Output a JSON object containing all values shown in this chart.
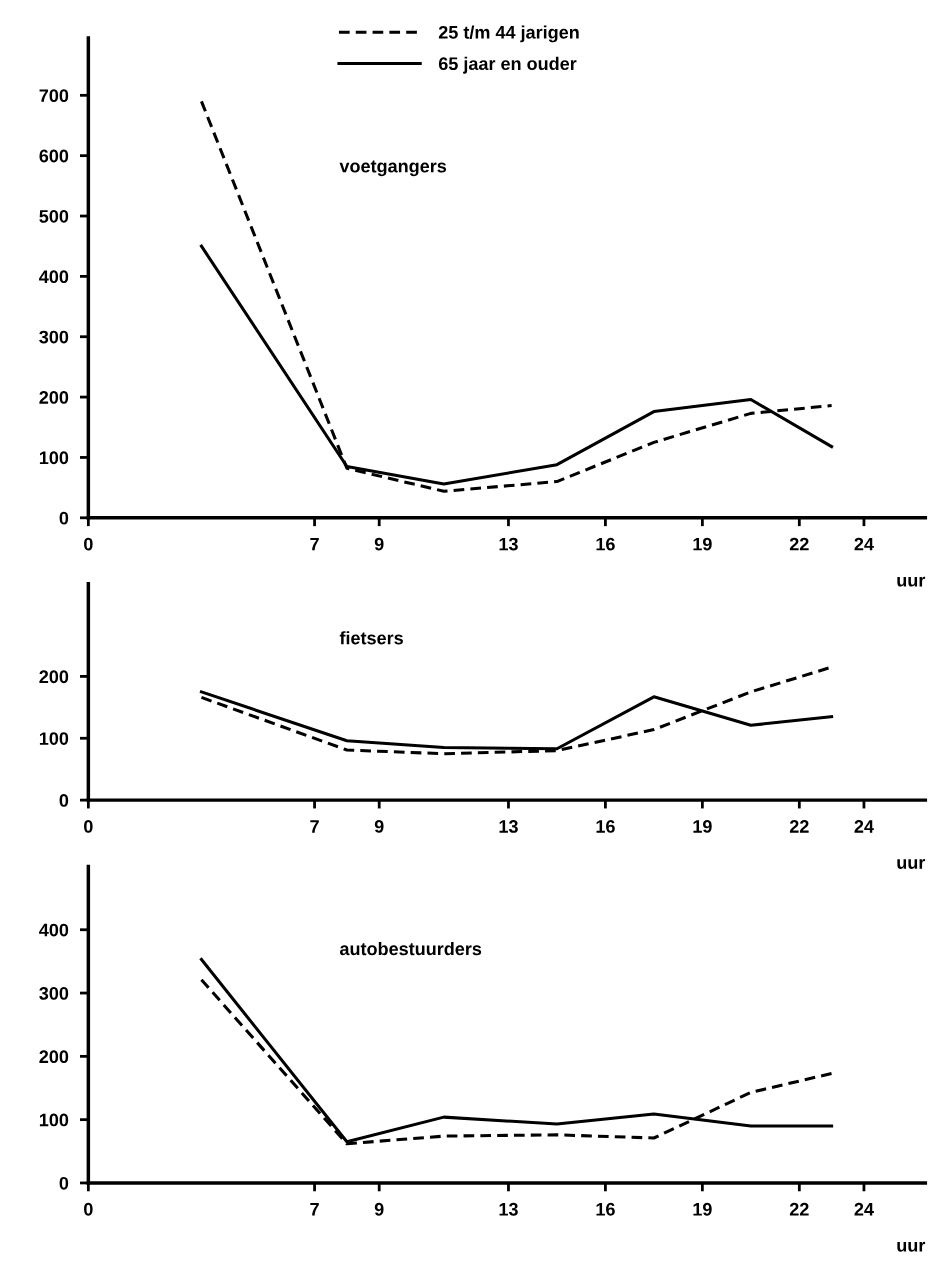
{
  "chart_data": [
    {
      "type": "line",
      "xlabel": "uur",
      "annotations": [
        "voetgangers"
      ],
      "legend": "top",
      "grid": false,
      "x": [
        3.5,
        8,
        11,
        14.5,
        17.5,
        20.5,
        23
      ],
      "xlim": [
        0,
        25.9
      ],
      "xticks": [
        0,
        7,
        9,
        13,
        16,
        19,
        22,
        24
      ],
      "ylim": [
        0,
        795
      ],
      "yticks": [
        0,
        100,
        200,
        300,
        400,
        500,
        600,
        700
      ],
      "series": [
        {
          "name": "25 t/m 44 jarigen",
          "color": "#000000",
          "line_style": "dashed",
          "values": [
            690,
            82,
            44,
            60,
            125,
            173,
            186
          ]
        },
        {
          "name": "65 jaar en ouder",
          "color": "#000000",
          "line_style": "solid",
          "values": [
            450,
            85,
            56,
            88,
            176,
            196,
            118
          ]
        }
      ]
    },
    {
      "type": "line",
      "xlabel": "uur",
      "annotations": [
        "fietsers"
      ],
      "grid": false,
      "x": [
        3.5,
        8,
        11,
        14.5,
        17.5,
        20.5,
        23
      ],
      "xlim": [
        0,
        25.9
      ],
      "xticks": [
        0,
        7,
        9,
        13,
        16,
        19,
        22,
        24
      ],
      "ylim": [
        0,
        350
      ],
      "yticks": [
        0,
        100,
        200
      ],
      "series": [
        {
          "color": "#000000",
          "line_style": "dashed",
          "values": [
            166,
            81,
            75,
            80,
            114,
            175,
            215
          ]
        },
        {
          "color": "#000000",
          "line_style": "solid",
          "values": [
            175,
            96,
            85,
            83,
            167,
            121,
            135
          ]
        }
      ]
    },
    {
      "type": "line",
      "xlabel": "uur",
      "annotations": [
        "autobestuurders"
      ],
      "grid": false,
      "x": [
        3.5,
        8,
        11,
        14.5,
        17.5,
        20.5,
        23
      ],
      "xlim": [
        0,
        25.9
      ],
      "xticks": [
        0,
        7,
        9,
        13,
        16,
        19,
        22,
        24
      ],
      "ylim": [
        0,
        500
      ],
      "yticks": [
        0,
        100,
        200,
        300,
        400
      ],
      "series": [
        {
          "color": "#000000",
          "line_style": "dashed",
          "values": [
            321,
            62,
            74,
            76,
            71,
            143,
            173
          ]
        },
        {
          "color": "#000000",
          "line_style": "solid",
          "values": [
            353,
            65,
            104,
            93,
            109,
            90,
            90
          ]
        }
      ]
    }
  ]
}
